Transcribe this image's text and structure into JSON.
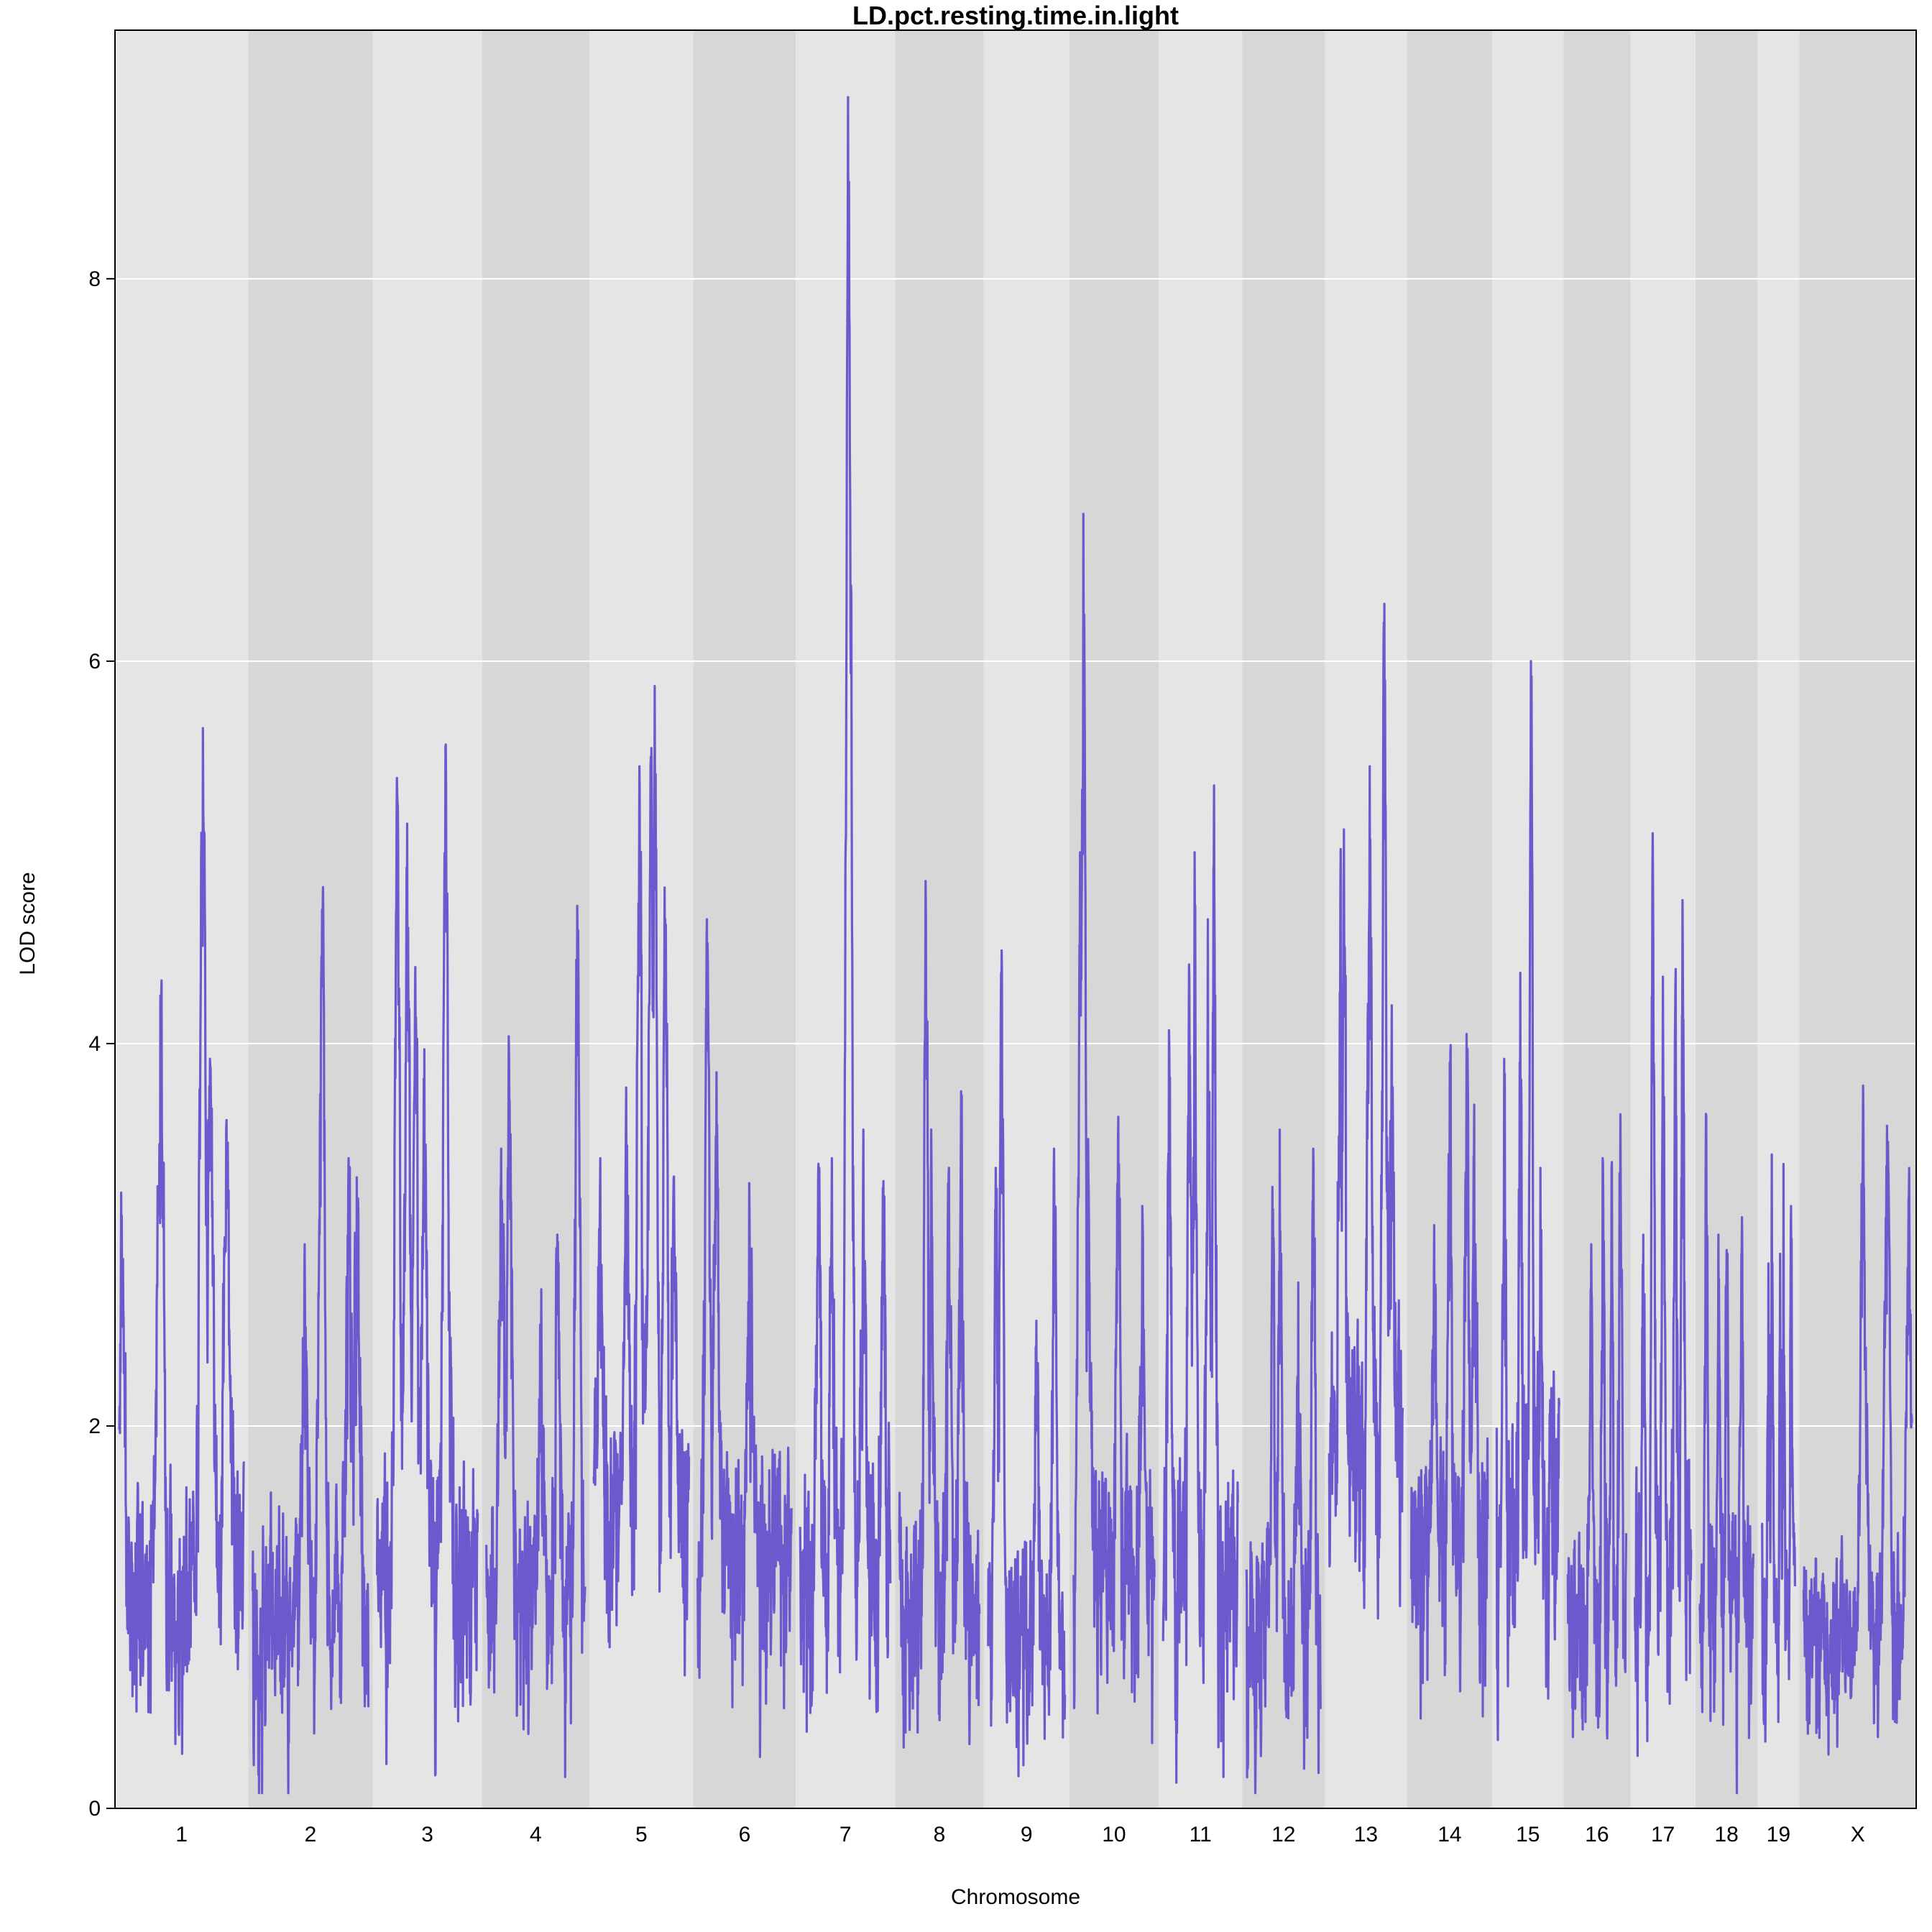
{
  "chart_data": {
    "type": "line",
    "title": "LD.pct.resting.time.in.light",
    "xlabel": "Chromosome",
    "ylabel": "LOD score",
    "ylim": [
      0,
      9.3
    ],
    "yticks": [
      0,
      2,
      4,
      6,
      8
    ],
    "grid": true,
    "line_color": "#6a5acd",
    "band_colors": [
      "#e5e5e5",
      "#d7d7d7"
    ],
    "chromosomes": [
      "1",
      "2",
      "3",
      "4",
      "5",
      "6",
      "7",
      "8",
      "9",
      "10",
      "11",
      "12",
      "13",
      "14",
      "15",
      "16",
      "17",
      "18",
      "19",
      "X"
    ],
    "chromosome_lengths": [
      195,
      182,
      160,
      157,
      152,
      150,
      145,
      130,
      125,
      131,
      122,
      121,
      120,
      125,
      104,
      98,
      95,
      91,
      61,
      171
    ],
    "profiles": [
      {
        "chr": "1",
        "base": 1.5,
        "amp": 1.2,
        "peaks": [
          [
            0.02,
            3.1
          ],
          [
            0.33,
            4.25
          ],
          [
            0.67,
            5.65
          ],
          [
            0.73,
            3.87
          ],
          [
            0.86,
            3.6
          ]
        ]
      },
      {
        "chr": "2",
        "base": 1.4,
        "amp": 1.1,
        "peaks": [
          [
            0.45,
            2.95
          ],
          [
            0.6,
            4.7
          ],
          [
            0.83,
            3.4
          ],
          [
            0.9,
            3.3
          ]
        ]
      },
      {
        "chr": "3",
        "base": 1.6,
        "amp": 1.2,
        "peaks": [
          [
            0.2,
            5.3
          ],
          [
            0.3,
            5.15
          ],
          [
            0.38,
            4.4
          ],
          [
            0.47,
            3.97
          ],
          [
            0.68,
            5.55
          ],
          [
            0.72,
            2.7
          ]
        ]
      },
      {
        "chr": "4",
        "base": 1.4,
        "amp": 1.1,
        "peaks": [
          [
            0.15,
            3.45
          ],
          [
            0.23,
            3.95
          ],
          [
            0.55,
            2.5
          ],
          [
            0.72,
            3.0
          ],
          [
            0.92,
            4.72
          ]
        ]
      },
      {
        "chr": "5",
        "base": 1.9,
        "amp": 1.3,
        "peaks": [
          [
            0.07,
            3.4
          ],
          [
            0.34,
            3.77
          ],
          [
            0.48,
            5.45
          ],
          [
            0.6,
            5.5
          ],
          [
            0.64,
            5.87
          ],
          [
            0.75,
            4.65
          ],
          [
            0.84,
            3.3
          ]
        ]
      },
      {
        "chr": "6",
        "base": 1.7,
        "amp": 1.2,
        "peaks": [
          [
            0.1,
            4.65
          ],
          [
            0.2,
            3.85
          ],
          [
            0.55,
            3.27
          ],
          [
            0.82,
            1.85
          ]
        ]
      },
      {
        "chr": "7",
        "base": 1.6,
        "amp": 1.3,
        "peaks": [
          [
            0.2,
            3.3
          ],
          [
            0.35,
            3.4
          ],
          [
            0.53,
            8.95
          ],
          [
            0.55,
            7.1
          ],
          [
            0.7,
            3.55
          ],
          [
            0.92,
            3.28
          ]
        ]
      },
      {
        "chr": "8",
        "base": 1.4,
        "amp": 1.2,
        "peaks": [
          [
            0.33,
            4.85
          ],
          [
            0.4,
            3.55
          ],
          [
            0.62,
            3.35
          ],
          [
            0.77,
            3.75
          ]
        ]
      },
      {
        "chr": "9",
        "base": 1.2,
        "amp": 1.0,
        "peaks": [
          [
            0.1,
            3.35
          ],
          [
            0.17,
            4.37
          ],
          [
            0.63,
            2.55
          ],
          [
            0.86,
            3.45
          ]
        ]
      },
      {
        "chr": "10",
        "base": 1.6,
        "amp": 1.2,
        "peaks": [
          [
            0.08,
            5.0
          ],
          [
            0.12,
            6.77
          ],
          [
            0.18,
            3.5
          ],
          [
            0.55,
            3.5
          ],
          [
            0.85,
            3.15
          ]
        ]
      },
      {
        "chr": "11",
        "base": 1.6,
        "amp": 1.3,
        "peaks": [
          [
            0.08,
            4.07
          ],
          [
            0.35,
            4.35
          ],
          [
            0.42,
            5.0
          ],
          [
            0.6,
            4.65
          ],
          [
            0.68,
            5.35
          ]
        ]
      },
      {
        "chr": "12",
        "base": 1.3,
        "amp": 1.1,
        "peaks": [
          [
            0.35,
            3.25
          ],
          [
            0.45,
            3.55
          ],
          [
            0.7,
            2.75
          ],
          [
            0.9,
            3.45
          ]
        ]
      },
      {
        "chr": "13",
        "base": 2.4,
        "amp": 1.4,
        "peaks": [
          [
            0.15,
            4.8
          ],
          [
            0.2,
            5.12
          ],
          [
            0.55,
            5.45
          ],
          [
            0.75,
            6.3
          ],
          [
            0.85,
            4.2
          ]
        ]
      },
      {
        "chr": "14",
        "base": 1.7,
        "amp": 1.2,
        "peaks": [
          [
            0.3,
            3.05
          ],
          [
            0.5,
            3.9
          ],
          [
            0.72,
            4.05
          ],
          [
            0.82,
            3.68
          ]
        ]
      },
      {
        "chr": "15",
        "base": 1.9,
        "amp": 1.4,
        "peaks": [
          [
            0.12,
            3.92
          ],
          [
            0.38,
            4.37
          ],
          [
            0.55,
            6.0
          ],
          [
            0.7,
            3.35
          ]
        ]
      },
      {
        "chr": "16",
        "base": 1.3,
        "amp": 1.1,
        "peaks": [
          [
            0.4,
            2.95
          ],
          [
            0.6,
            3.4
          ],
          [
            0.75,
            3.35
          ],
          [
            0.9,
            3.63
          ]
        ]
      },
      {
        "chr": "17",
        "base": 1.7,
        "amp": 1.3,
        "peaks": [
          [
            0.15,
            3.0
          ],
          [
            0.32,
            5.1
          ],
          [
            0.5,
            4.35
          ],
          [
            0.72,
            4.3
          ],
          [
            0.85,
            4.75
          ]
        ]
      },
      {
        "chr": "18",
        "base": 1.4,
        "amp": 1.1,
        "peaks": [
          [
            0.12,
            3.62
          ],
          [
            0.35,
            3.0
          ],
          [
            0.5,
            2.92
          ],
          [
            0.78,
            2.9
          ]
        ]
      },
      {
        "chr": "19",
        "base": 1.3,
        "amp": 1.1,
        "peaks": [
          [
            0.2,
            2.85
          ],
          [
            0.3,
            3.42
          ],
          [
            0.55,
            2.9
          ],
          [
            0.65,
            3.37
          ],
          [
            0.88,
            3.15
          ]
        ]
      },
      {
        "chr": "X",
        "base": 1.2,
        "amp": 0.9,
        "peaks": [
          [
            0.55,
            3.78
          ],
          [
            0.77,
            3.57
          ],
          [
            0.97,
            3.18
          ]
        ]
      }
    ]
  }
}
